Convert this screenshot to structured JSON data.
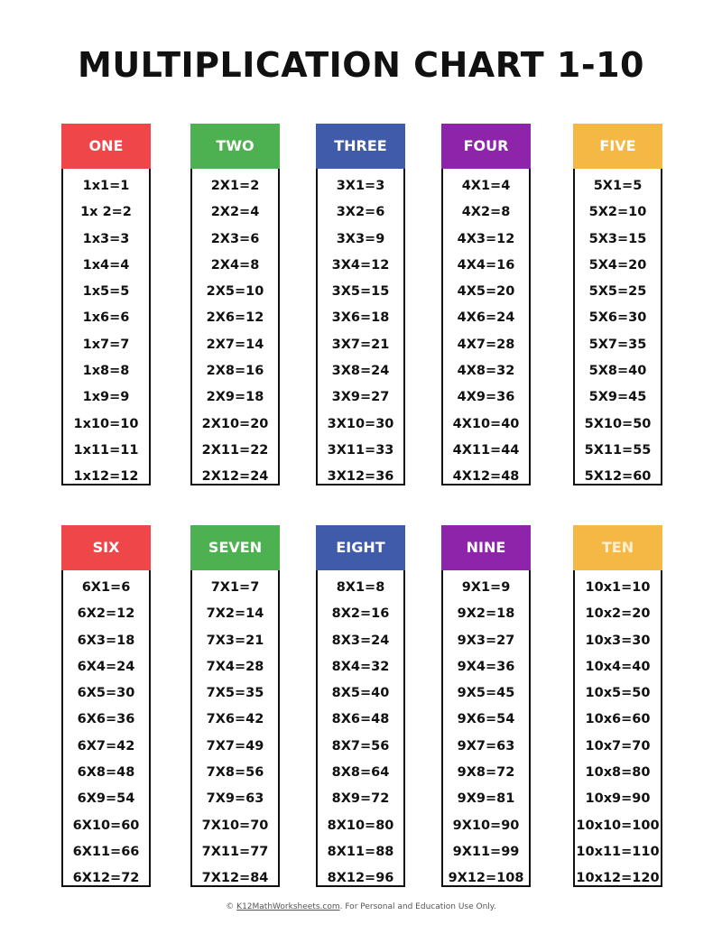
{
  "title": "MULTIPLICATION CHART 1-10",
  "columns": [
    {
      "label": "ONE",
      "color": "#EF4649",
      "text_color": "#ffffff",
      "rows": [
        "1x1=1",
        "1x 2=2",
        "1x3=3",
        "1x4=4",
        "1x5=5",
        "1x6=6",
        "1x7=7",
        "1x8=8",
        "1x9=9",
        "1x10=10",
        "1x11=11",
        "1x12=12"
      ]
    },
    {
      "label": "TWO",
      "color": "#4DB151",
      "text_color": "#ffffff",
      "rows": [
        "2X1=2",
        "2X2=4",
        "2X3=6",
        "2X4=8",
        "2X5=10",
        "2X6=12",
        "2X7=14",
        "2X8=16",
        "2X9=18",
        "2X10=20",
        "2X11=22",
        "2X12=24"
      ]
    },
    {
      "label": "THREE",
      "color": "#3F5BA9",
      "text_color": "#ffffff",
      "rows": [
        "3X1=3",
        "3X2=6",
        "3X3=9",
        "3X4=12",
        "3X5=15",
        "3X6=18",
        "3X7=21",
        "3X8=24",
        "3X9=27",
        "3X10=30",
        "3X11=33",
        "3X12=36"
      ]
    },
    {
      "label": "FOUR",
      "color": "#8E24AA",
      "text_color": "#ffffff",
      "rows": [
        "4X1=4",
        "4X2=8",
        "4X3=12",
        "4X4=16",
        "4X5=20",
        "4X6=24",
        "4X7=28",
        "4X8=32",
        "4X9=36",
        "4X10=40",
        "4X11=44",
        "4X12=48"
      ]
    },
    {
      "label": "FIVE",
      "color": "#F5B844",
      "text_color": "#ffffff",
      "rows": [
        "5X1=5",
        "5X2=10",
        "5X3=15",
        "5X4=20",
        "5X5=25",
        "5X6=30",
        "5X7=35",
        "5X8=40",
        "5X9=45",
        "5X10=50",
        "5X11=55",
        "5X12=60"
      ]
    },
    {
      "label": "SIX",
      "color": "#EF4649",
      "text_color": "#ffffff",
      "rows": [
        "6X1=6",
        "6X2=12",
        "6X3=18",
        "6X4=24",
        "6X5=30",
        "6X6=36",
        "6X7=42",
        "6X8=48",
        "6X9=54",
        "6X10=60",
        "6X11=66",
        "6X12=72"
      ]
    },
    {
      "label": "SEVEN",
      "color": "#4DB151",
      "text_color": "#ffffff",
      "rows": [
        "7X1=7",
        "7X2=14",
        "7X3=21",
        "7X4=28",
        "7X5=35",
        "7X6=42",
        "7X7=49",
        "7X8=56",
        "7X9=63",
        "7X10=70",
        "7X11=77",
        "7X12=84"
      ]
    },
    {
      "label": "EIGHT",
      "color": "#3F5BA9",
      "text_color": "#ffffff",
      "rows": [
        "8X1=8",
        "8X2=16",
        "8X3=24",
        "8X4=32",
        "8X5=40",
        "8X6=48",
        "8X7=56",
        "8X8=64",
        "8X9=72",
        "8X10=80",
        "8X11=88",
        "8X12=96"
      ]
    },
    {
      "label": "NINE",
      "color": "#8E24AA",
      "text_color": "#ffffff",
      "rows": [
        "9X1=9",
        "9X2=18",
        "9X3=27",
        "9X4=36",
        "9X5=45",
        "9X6=54",
        "9X7=63",
        "9X8=72",
        "9X9=81",
        "9X10=90",
        "9X11=99",
        "9X12=108"
      ]
    },
    {
      "label": "TEN",
      "color": "#F5B844",
      "text_color": "#FDF0D0",
      "rows": [
        "10x1=10",
        "10x2=20",
        "10x3=30",
        "10x4=40",
        "10x5=50",
        "10x6=60",
        "10x7=70",
        "10x8=80",
        "10x9=90",
        "10x10=100",
        "10x11=110",
        "10x12=120"
      ]
    }
  ],
  "footer": {
    "prefix": "© ",
    "link": "K12MathWorksheets.com",
    "suffix": ". For Personal and Education Use Only."
  }
}
